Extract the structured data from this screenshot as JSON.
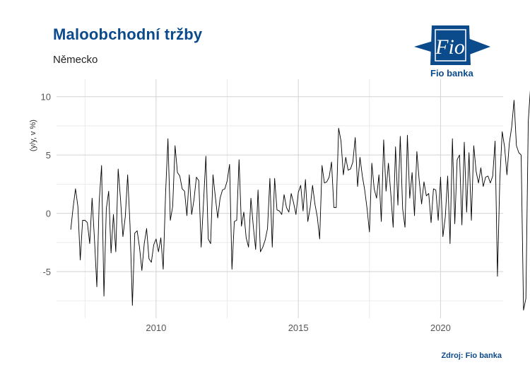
{
  "header": {
    "title": "Maloobchodní tržby",
    "subtitle": "Německo"
  },
  "logo": {
    "mark_text": "Fio",
    "caption": "Fio banka"
  },
  "footer": {
    "source": "Zdroj: Fio banka"
  },
  "colors": {
    "title": "#0b4a8b",
    "line": "#000000",
    "grid": "#d3d3d3"
  },
  "chart_data": {
    "type": "line",
    "title": "Maloobchodní tržby",
    "subtitle": "Německo",
    "ylabel": "(y/y, v %)",
    "xlabel": "",
    "frequency": "monthly",
    "x_start": "2007-01",
    "x_end": "2021-05",
    "xlim": [
      2006.5,
      2022.2
    ],
    "ylim": [
      -9.0,
      11.5
    ],
    "x_ticks": [
      2010,
      2015,
      2020
    ],
    "y_ticks": [
      -5,
      0,
      5,
      10
    ],
    "grid": true,
    "legend": "none",
    "series": [
      {
        "values": [
          -1.4,
          0.5,
          2.1,
          0.6,
          -4.0,
          -0.6,
          -0.6,
          -0.8,
          -2.6,
          1.3,
          -2.2,
          -6.3,
          1.0,
          4.1,
          -7.1,
          0.4,
          1.9,
          -3.4,
          -0.1,
          -3.3,
          3.8,
          1.2,
          -2.0,
          -0.3,
          3.3,
          -1.0,
          -7.9,
          -1.7,
          -1.5,
          -2.9,
          -4.9,
          -2.6,
          -1.3,
          -3.9,
          -4.2,
          -2.7,
          -2.2,
          -3.3,
          -2.1,
          -4.8,
          1.7,
          6.4,
          -0.6,
          0.6,
          5.8,
          3.5,
          3.2,
          2.1,
          1.9,
          -0.2,
          3.3,
          -0.1,
          1.2,
          3.1,
          2.8,
          -2.9,
          0.9,
          4.9,
          -2.2,
          -2.6,
          3.3,
          1.4,
          -0.4,
          1.3,
          2.0,
          2.1,
          2.8,
          4.2,
          -4.8,
          -0.7,
          -0.6,
          4.6,
          -1.1,
          0.1,
          -2.1,
          -2.9,
          1.3,
          -1.1,
          -3.1,
          2.0,
          -3.3,
          -2.9,
          -2.3,
          -1.3,
          3.0,
          -2.9,
          3.0,
          0.3,
          0.2,
          -0.1,
          1.6,
          0.5,
          0.1,
          1.7,
          0.9,
          -0.1,
          1.8,
          2.4,
          0.2,
          2.9,
          -0.7,
          0.5,
          2.4,
          0.8,
          -0.3,
          -2.2,
          4.1,
          2.6,
          2.7,
          3.1,
          4.4,
          0.5,
          0.5,
          7.3,
          6.2,
          3.3,
          4.8,
          3.7,
          3.8,
          4.4,
          6.5,
          2.3,
          4.8,
          3.2,
          2.0,
          0.4,
          -1.6,
          4.3,
          2.1,
          1.3,
          3.3,
          -0.7,
          6.3,
          1.9,
          4.3,
          1.7,
          -1.2,
          5.7,
          0.7,
          6.6,
          0.4,
          -1.2,
          6.7,
          1.3,
          3.5,
          -0.2,
          5.3,
          2.8,
          0.8,
          2.7,
          1.5,
          1.7,
          -0.8,
          2.1,
          2.0,
          -0.6,
          3.1,
          -2.0,
          -0.3,
          3.2,
          -2.6,
          6.4,
          -0.9,
          4.6,
          5.0,
          -1.0,
          6.1,
          0.1,
          5.2,
          -0.6,
          5.8,
          3.6,
          2.6,
          3.9,
          2.3,
          3.1,
          3.2,
          2.6,
          3.2,
          6.2,
          -5.4,
          2.9,
          7.0,
          5.7,
          3.3,
          6.0,
          7.4,
          9.7,
          5.8,
          5.2,
          5.0,
          -8.3,
          -7.3,
          7.9,
          11.0
        ]
      }
    ]
  }
}
